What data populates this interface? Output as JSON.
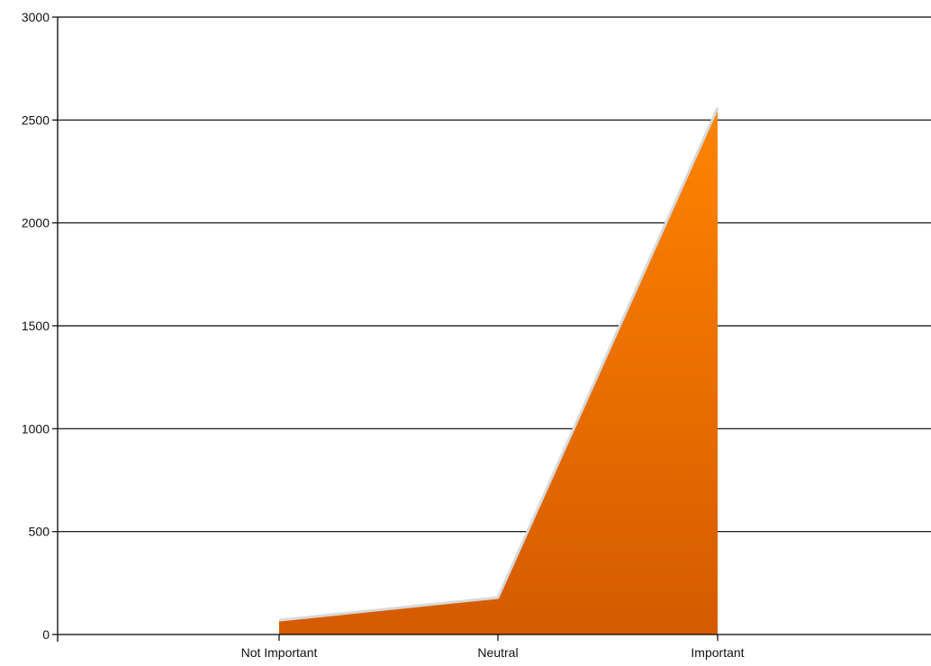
{
  "chart_data": {
    "type": "area",
    "categories": [
      "Not Important",
      "Neutral",
      "Important"
    ],
    "series": [
      {
        "values": [
          65,
          175,
          2555
        ]
      }
    ],
    "ylim": [
      0,
      3000
    ],
    "yticks": [
      0,
      500,
      1000,
      1500,
      2000,
      2500,
      3000
    ],
    "grid": true,
    "legend": "none",
    "colors": {
      "area_top": "#ff8400",
      "area_bottom": "#d55a00",
      "area_edge": "#d8d8d8",
      "axis": "#000000",
      "grid": "#000000"
    }
  }
}
